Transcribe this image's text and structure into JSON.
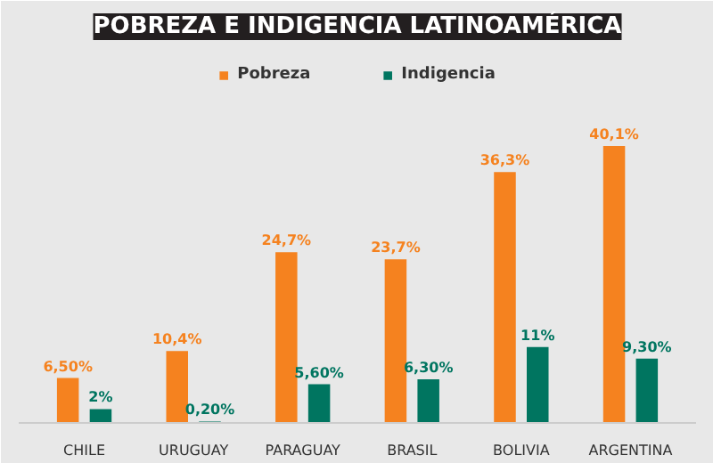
{
  "chart_data": {
    "type": "bar",
    "title": "POBREZA E INDIGENCIA LATINOAMÉRICA",
    "categories": [
      "CHILE",
      "URUGUAY",
      "PARAGUAY",
      "BRASIL",
      "BOLIVIA",
      "ARGENTINA"
    ],
    "series": [
      {
        "name": "Pobreza",
        "color": "#f5821f",
        "values": [
          6.5,
          10.4,
          24.7,
          23.7,
          36.3,
          40.1
        ],
        "value_labels": [
          "6,50%",
          "10,4%",
          "24,7%",
          "23,7%",
          "36,3%",
          "40,1%"
        ]
      },
      {
        "name": "Indigencia",
        "color": "#007560",
        "values": [
          2,
          0.2,
          5.6,
          6.3,
          11,
          9.3
        ],
        "value_labels": [
          "2%",
          "0,20%",
          "5,60%",
          "6,30%",
          "11%",
          "9,30%"
        ]
      }
    ],
    "legend": "top",
    "tick_labels": "x"
  }
}
